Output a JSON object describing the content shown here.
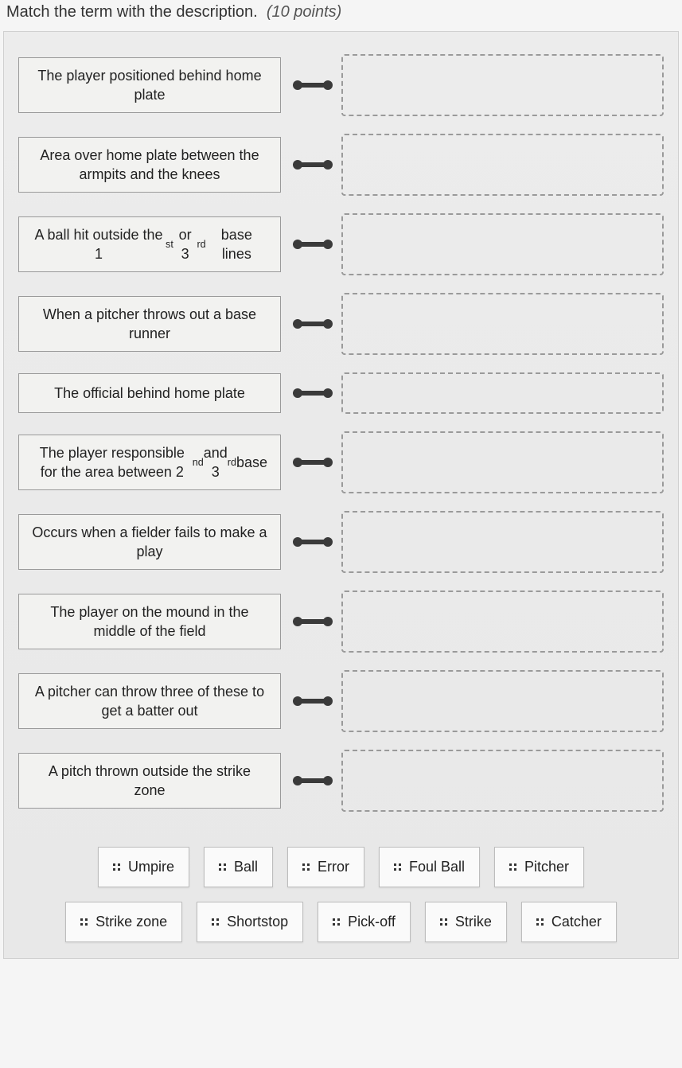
{
  "question": {
    "prompt": "Match the term with the description.",
    "points_label": "(10 points)"
  },
  "rows": [
    {
      "desc_html": "The player positioned behind home plate",
      "short": false
    },
    {
      "desc_html": "Area over home plate between the armpits and the knees",
      "short": false
    },
    {
      "desc_html": "A ball hit outside the 1<sup>st</sup> or 3<sup>rd</sup> base lines",
      "short": false
    },
    {
      "desc_html": "When a pitcher throws out a base runner",
      "short": false
    },
    {
      "desc_html": "The official behind home plate",
      "short": true
    },
    {
      "desc_html": "The player responsible for the area between 2<sup>nd</sup> and 3<sup>rd</sup> base",
      "short": false
    },
    {
      "desc_html": "Occurs when a fielder fails to make a play",
      "short": false
    },
    {
      "desc_html": "The player on the mound in the middle of the field",
      "short": false
    },
    {
      "desc_html": "A pitcher can throw three of these to get a batter out",
      "short": false
    },
    {
      "desc_html": "A pitch thrown outside the strike zone",
      "short": false
    }
  ],
  "answers_row1": [
    {
      "label": "Umpire"
    },
    {
      "label": "Ball"
    },
    {
      "label": "Error"
    },
    {
      "label": "Foul Ball"
    },
    {
      "label": "Pitcher"
    }
  ],
  "answers_row2": [
    {
      "label": "Strike zone"
    },
    {
      "label": "Shortstop"
    },
    {
      "label": "Pick-off"
    },
    {
      "label": "Strike"
    },
    {
      "label": "Catcher"
    }
  ],
  "colors": {
    "page_bg": "#f5f5f5",
    "panel_bg": "#ececec",
    "box_bg": "#f2f2f0",
    "box_border": "#9a9a9a",
    "dash_border": "#9a9a9a",
    "chip_bg": "#fafafa",
    "chip_border": "#bdbdbd",
    "connector": "#3a3a3a"
  }
}
